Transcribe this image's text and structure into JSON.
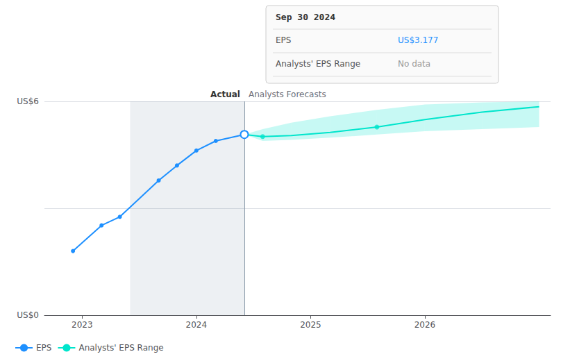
{
  "chart_data": {
    "type": "line",
    "xlim": [
      2022.67,
      2027.1
    ],
    "xticks": [
      2023,
      2024,
      2025,
      2026
    ],
    "ylim": [
      0,
      6
    ],
    "yticks": [
      {
        "value": 0,
        "label": "US$0"
      },
      {
        "value": 3,
        "label": null
      },
      {
        "value": 6,
        "label": "US$6"
      }
    ],
    "grid": true,
    "legend": "bottom left",
    "series": [
      {
        "name": "EPS",
        "color": "#1e90ff",
        "marker": "circle",
        "x": [
          2022.92,
          2023.17,
          2023.33,
          2023.67,
          2023.83,
          2024.0,
          2024.17,
          2024.42
        ],
        "values": [
          1.8,
          2.52,
          2.76,
          3.78,
          4.2,
          4.62,
          4.89,
          5.07
        ]
      },
      {
        "name": "Analysts' EPS Range",
        "color": "#00e5cc",
        "x": [
          2024.42,
          2024.58,
          2024.83,
          2025.17,
          2025.58,
          2026.0,
          2026.5,
          2027.0
        ],
        "values": [
          5.07,
          5.01,
          5.04,
          5.13,
          5.28,
          5.49,
          5.7,
          5.85
        ],
        "band_lower": [
          5.07,
          4.89,
          4.92,
          4.98,
          5.07,
          5.16,
          5.22,
          5.28
        ],
        "band_upper": [
          5.07,
          5.22,
          5.4,
          5.58,
          5.76,
          5.91,
          5.97,
          6.0
        ],
        "marker_points": {
          "x": [
            2024.58,
            2025.58
          ],
          "values": [
            5.01,
            5.28
          ]
        }
      }
    ],
    "highlight": {
      "x": [
        2023.42,
        2024.42
      ]
    },
    "divider": {
      "x": 2024.42,
      "left_label": "Actual",
      "right_label": "Analysts Forecasts"
    },
    "tooltip_box": {
      "title": "Sep 30 2024",
      "rows": [
        {
          "label": "EPS",
          "value": "US$3.177"
        },
        {
          "label": "Analysts' EPS Range",
          "value": "No data"
        }
      ]
    }
  }
}
